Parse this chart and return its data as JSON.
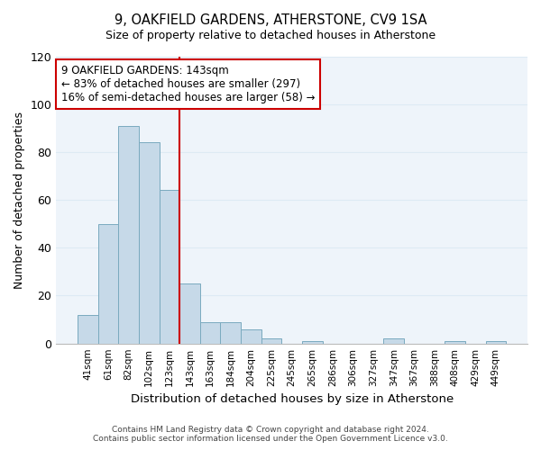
{
  "title": "9, OAKFIELD GARDENS, ATHERSTONE, CV9 1SA",
  "subtitle": "Size of property relative to detached houses in Atherstone",
  "xlabel": "Distribution of detached houses by size in Atherstone",
  "ylabel": "Number of detached properties",
  "bar_labels": [
    "41sqm",
    "61sqm",
    "82sqm",
    "102sqm",
    "123sqm",
    "143sqm",
    "163sqm",
    "184sqm",
    "204sqm",
    "225sqm",
    "245sqm",
    "265sqm",
    "286sqm",
    "306sqm",
    "327sqm",
    "347sqm",
    "367sqm",
    "388sqm",
    "408sqm",
    "429sqm",
    "449sqm"
  ],
  "bar_values": [
    12,
    50,
    91,
    84,
    64,
    25,
    9,
    9,
    6,
    2,
    0,
    1,
    0,
    0,
    0,
    2,
    0,
    0,
    1,
    0,
    1
  ],
  "bar_color": "#c6d9e8",
  "bar_edge_color": "#7aaabf",
  "vline_color": "#cc0000",
  "annotation_title": "9 OAKFIELD GARDENS: 143sqm",
  "annotation_line1": "← 83% of detached houses are smaller (297)",
  "annotation_line2": "16% of semi-detached houses are larger (58) →",
  "annotation_box_facecolor": "#ffffff",
  "annotation_box_edgecolor": "#cc0000",
  "ylim": [
    0,
    120
  ],
  "yticks": [
    0,
    20,
    40,
    60,
    80,
    100,
    120
  ],
  "grid_color": "#ddeaf4",
  "bg_color": "#eef4fa",
  "footer1": "Contains HM Land Registry data © Crown copyright and database right 2024.",
  "footer2": "Contains public sector information licensed under the Open Government Licence v3.0."
}
